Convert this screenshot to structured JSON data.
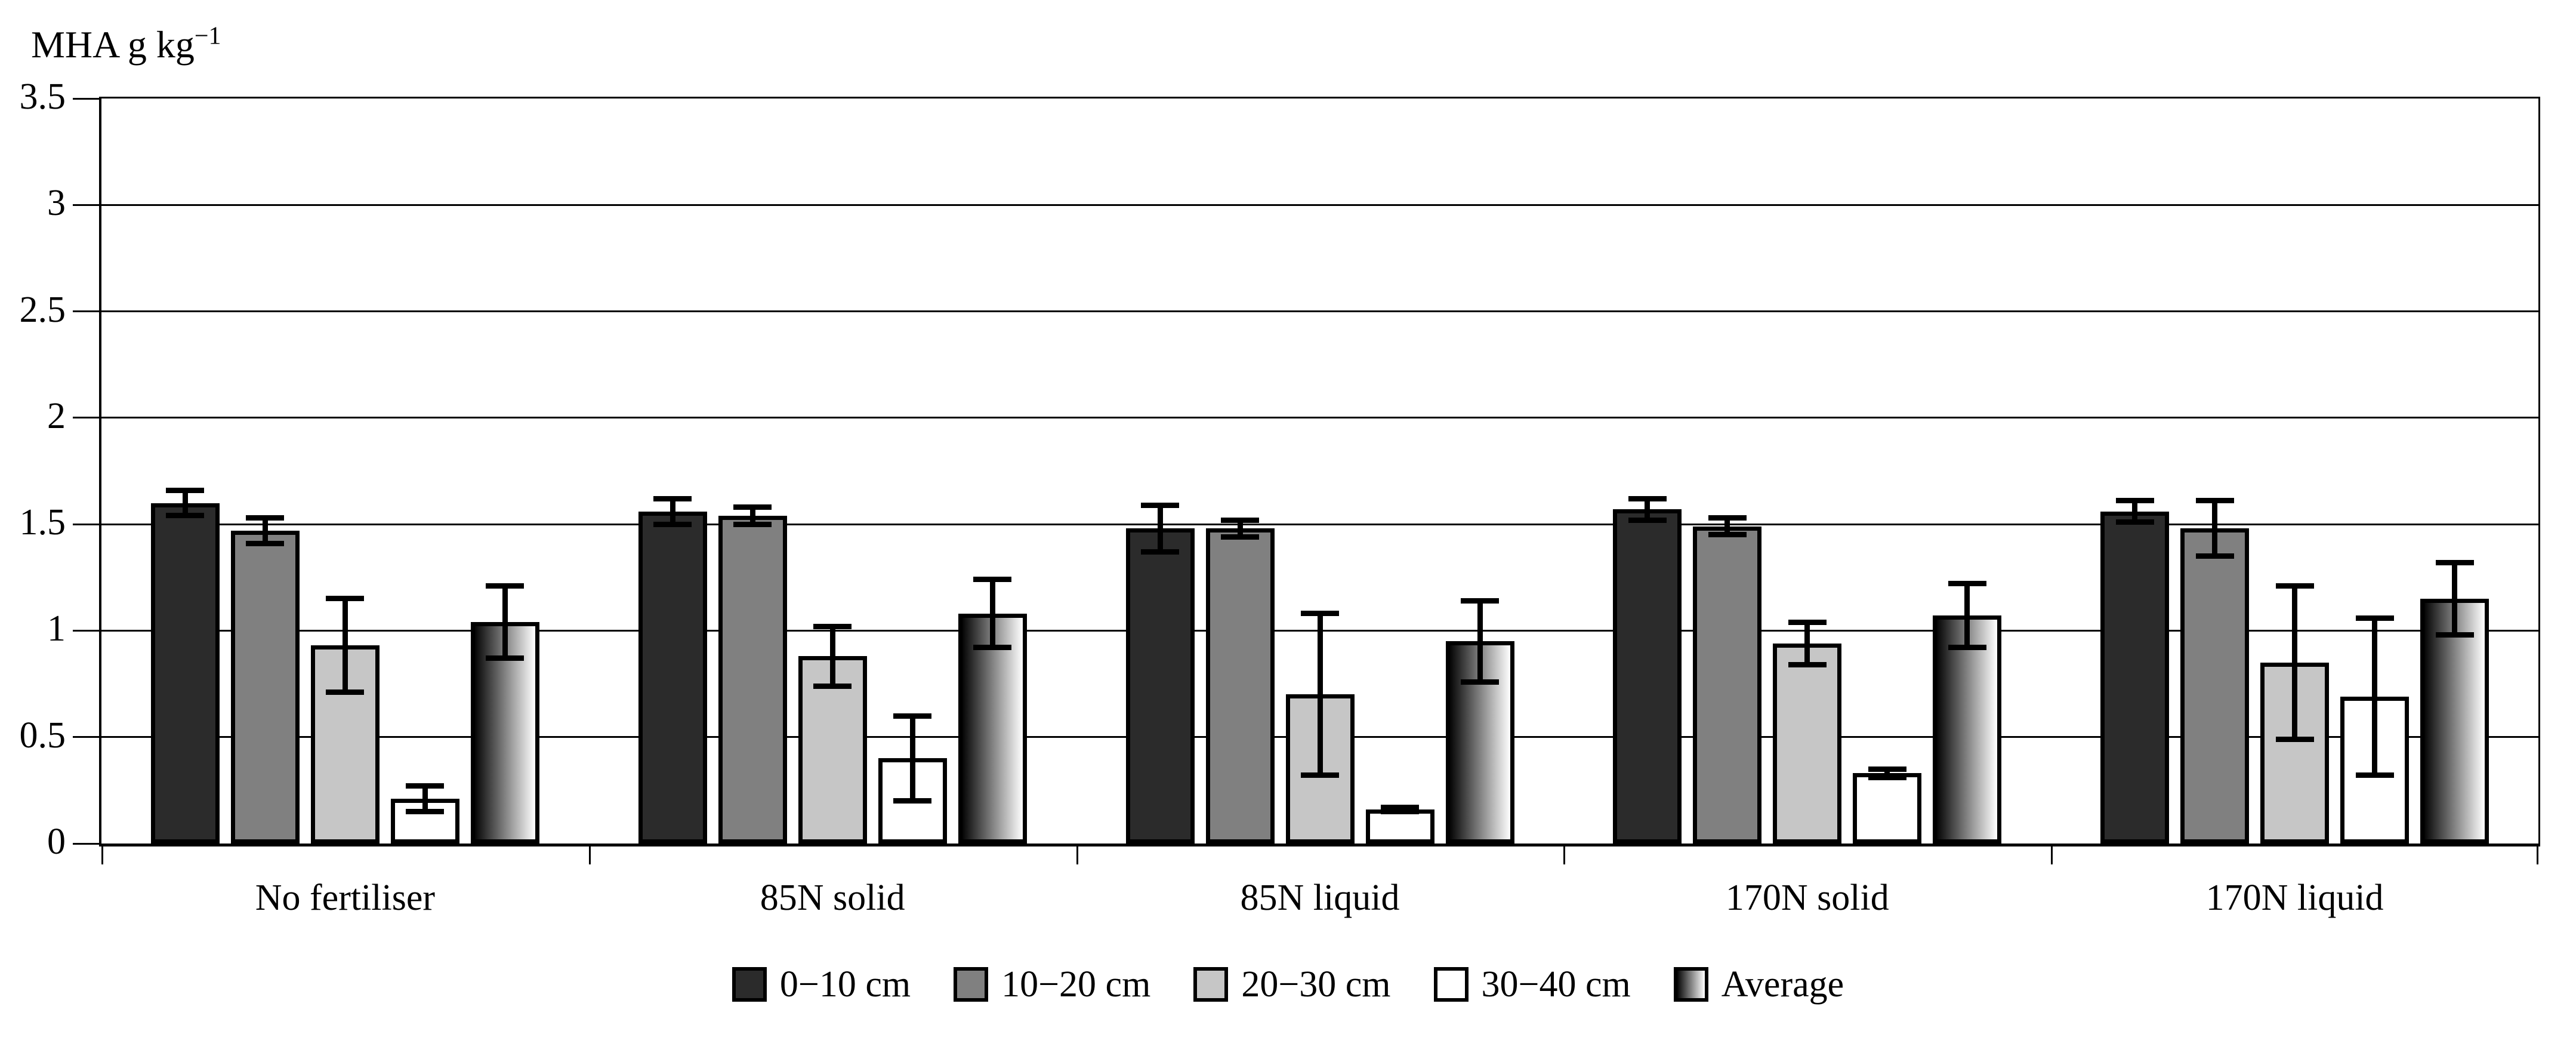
{
  "title": {
    "base": "MHA g kg",
    "superscript": "−1"
  },
  "chart_data": {
    "type": "bar",
    "title": "MHA g kg⁻¹",
    "ylabel": "MHA g kg⁻¹",
    "xlabel": "",
    "ylim": [
      0,
      3.5
    ],
    "ytick_step": 0.5,
    "ytick_labels": [
      "3.5",
      "3",
      "2.5",
      "2",
      "1.5",
      "1",
      "0.5",
      "0"
    ],
    "grid": "horizontal",
    "legend_position": "bottom",
    "categories": [
      "No fertiliser",
      "85N solid",
      "85N liquid",
      "170N solid",
      "170N liquid"
    ],
    "series": [
      {
        "name": "0−10 cm",
        "color": "#2b2b2b",
        "values": [
          1.6,
          1.56,
          1.48,
          1.57,
          1.56
        ],
        "errors": [
          0.06,
          0.06,
          0.11,
          0.05,
          0.05
        ]
      },
      {
        "name": "10−20 cm",
        "color": "#808080",
        "values": [
          1.47,
          1.54,
          1.48,
          1.49,
          1.48
        ],
        "errors": [
          0.06,
          0.04,
          0.04,
          0.04,
          0.13
        ]
      },
      {
        "name": "20−30 cm",
        "color": "#c6c6c6",
        "values": [
          0.93,
          0.88,
          0.7,
          0.94,
          0.85
        ],
        "errors": [
          0.22,
          0.14,
          0.38,
          0.1,
          0.36
        ]
      },
      {
        "name": "30−40 cm",
        "color": "#ffffff",
        "values": [
          0.21,
          0.4,
          0.16,
          0.33,
          0.69
        ],
        "errors": [
          0.06,
          0.2,
          0.01,
          0.02,
          0.37
        ]
      },
      {
        "name": "Average",
        "color": "gradient",
        "values": [
          1.04,
          1.08,
          0.95,
          1.07,
          1.15
        ],
        "errors": [
          0.17,
          0.16,
          0.19,
          0.15,
          0.17
        ]
      }
    ]
  }
}
